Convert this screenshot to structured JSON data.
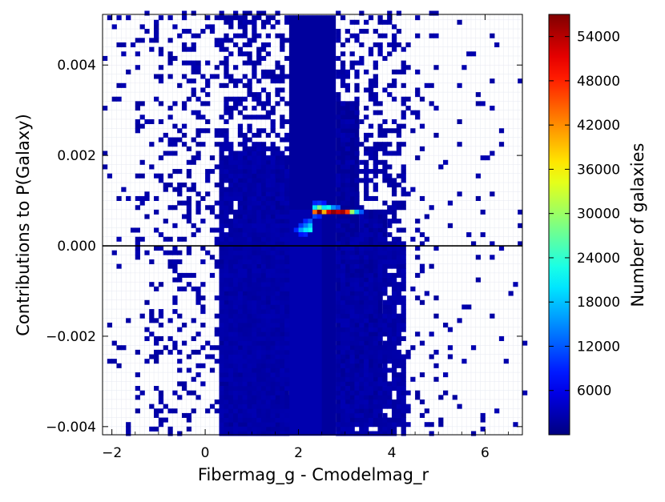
{
  "chart_data": {
    "type": "heatmap",
    "xlabel": "Fibermag_g - Cmodelmag_r",
    "ylabel": "Contributions to P(Galaxy)",
    "colorbar_label": "Number of galaxies",
    "xlim": [
      -2.2,
      6.8
    ],
    "ylim": [
      -0.00418,
      0.00512
    ],
    "x_ticks": [
      -2,
      0,
      2,
      4,
      6
    ],
    "x_tick_labels": [
      "−2",
      "0",
      "2",
      "4",
      "6"
    ],
    "y_ticks": [
      -0.004,
      -0.002,
      0.0,
      0.002,
      0.004
    ],
    "y_tick_labels": [
      "−0.004",
      "−0.002",
      "0.000",
      "0.002",
      "0.004"
    ],
    "color_range": [
      0,
      57000
    ],
    "colorbar_ticks": [
      6000,
      12000,
      18000,
      24000,
      30000,
      36000,
      42000,
      48000,
      54000
    ],
    "colorbar_tick_labels": [
      "6000",
      "12000",
      "18000",
      "24000",
      "30000",
      "36000",
      "42000",
      "48000",
      "54000"
    ],
    "colormap": "jet",
    "grid": true,
    "reference_line_y": 0.0,
    "bin_size": {
      "x": 0.1,
      "y": 0.0001
    },
    "regions": [
      {
        "x": [
          1.8,
          2.8
        ],
        "y": [
          -0.0042,
          0.0051
        ],
        "count": 500
      },
      {
        "x": [
          1.8,
          2.5
        ],
        "y": [
          -0.0042,
          0.0008
        ],
        "count": 1500
      },
      {
        "x": [
          0.7,
          1.8
        ],
        "y": [
          -0.0042,
          0.002
        ],
        "count": 300
      },
      {
        "x": [
          0.3,
          0.7
        ],
        "y": [
          -0.0042,
          0.0
        ],
        "count": 150
      },
      {
        "x": [
          2.8,
          3.8
        ],
        "y": [
          -0.004,
          0.0
        ],
        "count": 200
      },
      {
        "x": [
          2.8,
          3.3
        ],
        "y": [
          0.0,
          0.0032
        ],
        "count": 150
      },
      {
        "x": [
          3.3,
          3.9
        ],
        "y": [
          0.0,
          0.0008
        ],
        "count": 100
      }
    ],
    "hot_bins": [
      {
        "x": 2.35,
        "y": 0.00075,
        "count": 44000
      },
      {
        "x": 2.45,
        "y": 0.00075,
        "count": 57000
      },
      {
        "x": 2.55,
        "y": 0.00075,
        "count": 40000
      },
      {
        "x": 2.65,
        "y": 0.00075,
        "count": 52000
      },
      {
        "x": 2.75,
        "y": 0.00075,
        "count": 56000
      },
      {
        "x": 2.85,
        "y": 0.00075,
        "count": 53000
      },
      {
        "x": 2.95,
        "y": 0.00075,
        "count": 55000
      },
      {
        "x": 3.05,
        "y": 0.00075,
        "count": 47000
      },
      {
        "x": 3.15,
        "y": 0.00075,
        "count": 30000
      },
      {
        "x": 3.25,
        "y": 0.00075,
        "count": 18000
      },
      {
        "x": 3.35,
        "y": 0.00075,
        "count": 12000
      },
      {
        "x": 2.35,
        "y": 0.00085,
        "count": 20000
      },
      {
        "x": 2.45,
        "y": 0.00085,
        "count": 28000
      },
      {
        "x": 2.55,
        "y": 0.00085,
        "count": 20000
      },
      {
        "x": 2.65,
        "y": 0.00085,
        "count": 22000
      },
      {
        "x": 2.75,
        "y": 0.00085,
        "count": 15000
      },
      {
        "x": 2.85,
        "y": 0.00085,
        "count": 12000
      },
      {
        "x": 2.35,
        "y": 0.00095,
        "count": 9000
      },
      {
        "x": 2.45,
        "y": 0.00095,
        "count": 10000
      },
      {
        "x": 2.55,
        "y": 0.00095,
        "count": 8000
      },
      {
        "x": 2.35,
        "y": 0.00065,
        "count": 11000
      },
      {
        "x": 2.45,
        "y": 0.00065,
        "count": 9000
      },
      {
        "x": 2.15,
        "y": 0.00055,
        "count": 9000
      },
      {
        "x": 2.25,
        "y": 0.00055,
        "count": 12000
      },
      {
        "x": 2.15,
        "y": 0.00045,
        "count": 14000
      },
      {
        "x": 2.25,
        "y": 0.00045,
        "count": 18000
      },
      {
        "x": 2.05,
        "y": 0.00045,
        "count": 10000
      },
      {
        "x": 2.05,
        "y": 0.00035,
        "count": 16000
      },
      {
        "x": 2.15,
        "y": 0.00035,
        "count": 20000
      },
      {
        "x": 2.25,
        "y": 0.00035,
        "count": 22000
      },
      {
        "x": 1.95,
        "y": 0.00035,
        "count": 9000
      },
      {
        "x": 2.05,
        "y": 0.00025,
        "count": 8000
      },
      {
        "x": 2.15,
        "y": 0.00025,
        "count": 9000
      }
    ]
  }
}
